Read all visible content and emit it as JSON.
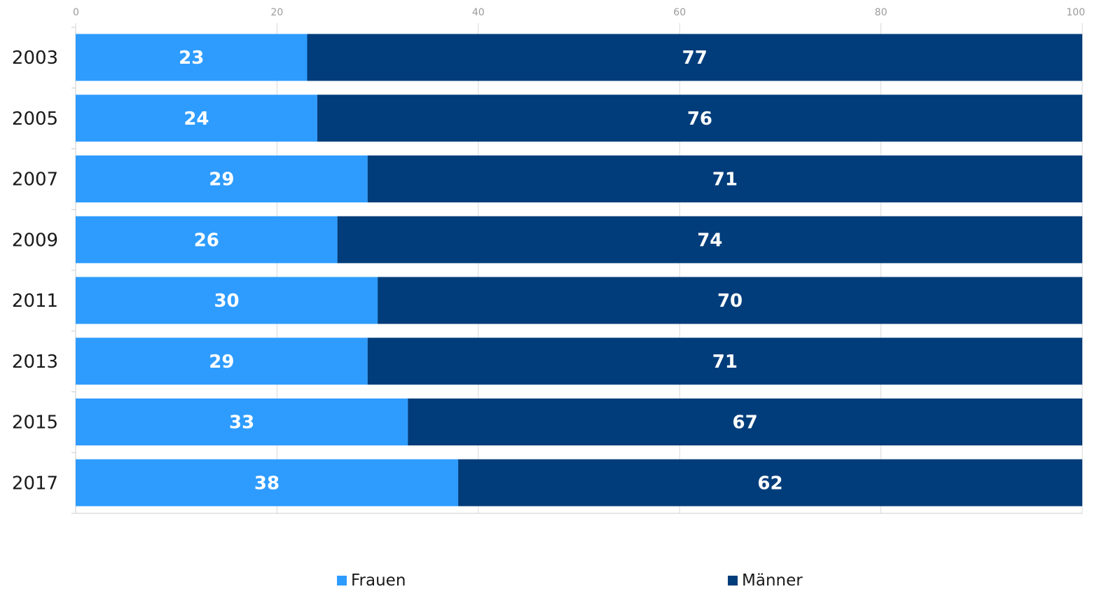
{
  "chart_data": {
    "type": "bar",
    "orientation": "horizontal",
    "stacked": true,
    "categories": [
      "2003",
      "2005",
      "2007",
      "2009",
      "2011",
      "2013",
      "2015",
      "2017"
    ],
    "series": [
      {
        "name": "Frauen",
        "color": "#2e9cff",
        "values": [
          23,
          24,
          29,
          26,
          30,
          29,
          33,
          38
        ]
      },
      {
        "name": "Männer",
        "color": "#003d7a",
        "values": [
          77,
          76,
          71,
          74,
          70,
          71,
          67,
          62
        ]
      }
    ],
    "xlim": [
      0,
      100
    ],
    "x_ticks": [
      "0",
      "20",
      "40",
      "60",
      "80",
      "100"
    ],
    "x_tick_values": [
      0,
      20,
      40,
      60,
      80,
      100
    ],
    "axis_position": "top",
    "grid": "vertical",
    "legend_position": "bottom",
    "data_labels": true
  },
  "legend": {
    "items": [
      {
        "label": "Frauen",
        "color": "#2e9cff"
      },
      {
        "label": "Männer",
        "color": "#003d7a"
      }
    ]
  }
}
